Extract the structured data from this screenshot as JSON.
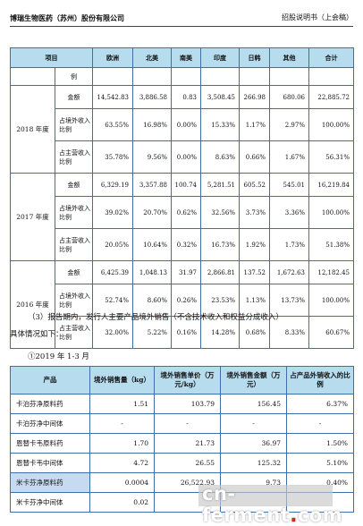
{
  "header": {
    "company": "博瑞生物医药（苏州）股份有限公司",
    "doc": "招股说明书（上会稿）"
  },
  "table1": {
    "headers": [
      "项目",
      "",
      "欧洲",
      "北美",
      "南美",
      "印度",
      "日韩",
      "其他",
      "合计"
    ],
    "carry_row": "例",
    "years": [
      {
        "label": "2018 年度",
        "rows": [
          {
            "metric": "金额",
            "values": [
              "14,542.83",
              "3,886.58",
              "0.83",
              "3,508.45",
              "266.98",
              "680.06",
              "22,885.72"
            ]
          },
          {
            "metric": "占境外收入比例",
            "values": [
              "63.55%",
              "16.98%",
              "0.00%",
              "15.33%",
              "1.17%",
              "2.97%",
              "100.00%"
            ]
          },
          {
            "metric": "占主营收入比例",
            "values": [
              "35.78%",
              "9.56%",
              "0.00%",
              "8.63%",
              "0.66%",
              "1.67%",
              "56.31%"
            ]
          }
        ]
      },
      {
        "label": "2017 年度",
        "rows": [
          {
            "metric": "金额",
            "values": [
              "6,329.19",
              "3,357.88",
              "100.74",
              "5,281.51",
              "605.52",
              "545.01",
              "16,219.84"
            ]
          },
          {
            "metric": "占境外收入比例",
            "values": [
              "39.02%",
              "20.70%",
              "0.62%",
              "32.56%",
              "3.73%",
              "3.36%",
              "100.00%"
            ]
          },
          {
            "metric": "占主营收入比例",
            "values": [
              "20.05%",
              "10.64%",
              "0.32%",
              "16.73%",
              "1.92%",
              "1.73%",
              "51.38%"
            ]
          }
        ]
      },
      {
        "label": "2016 年度",
        "rows": [
          {
            "metric": "金额",
            "values": [
              "6,425.39",
              "1,048.13",
              "31.97",
              "2,866.81",
              "137.52",
              "1,672.63",
              "12,182.45"
            ]
          },
          {
            "metric": "占境外收入比例",
            "values": [
              "52.74%",
              "8.60%",
              "0.26%",
              "23.53%",
              "1.13%",
              "13.73%",
              "100.00%"
            ]
          },
          {
            "metric": "占主营收入比例",
            "values": [
              "32.00%",
              "5.22%",
              "0.16%",
              "14.28%",
              "0.68%",
              "8.33%",
              "60.67%"
            ]
          }
        ]
      }
    ]
  },
  "para1": "（3）报告期内，发行人主要产品境外销售（不含技术收入和权益分成收入）",
  "para2": "具体情况如下：",
  "para3": "①2019 年 1-3 月",
  "table2": {
    "headers": [
      "产品",
      "境外销售量（kg）",
      "境外销售单价（万元/kg）",
      "境外销售金额（万元）",
      "占产品外销收入的比例"
    ],
    "rows": [
      {
        "product": "卡泊芬净原料药",
        "values": [
          "1.51",
          "103.79",
          "156.45",
          "6.37%"
        ],
        "highlight": false
      },
      {
        "product": "卡泊芬净中间体",
        "values": [
          "-",
          "-",
          "-",
          "-"
        ],
        "highlight": false
      },
      {
        "product": "恩替卡韦原料药",
        "values": [
          "1.70",
          "21.73",
          "36.97",
          "1.50%"
        ],
        "highlight": false
      },
      {
        "product": "恩替卡韦中间体",
        "values": [
          "4.72",
          "26.55",
          "125.32",
          "5.10%"
        ],
        "highlight": false
      },
      {
        "product": "米卡芬净原料药",
        "values": [
          "0.0004",
          "26,522.93",
          "9.73",
          "0.40%"
        ],
        "highlight": true
      },
      {
        "product": "米卡芬净中间体",
        "values": [
          "0.02",
          "",
          "",
          ""
        ],
        "highlight": false
      }
    ]
  },
  "watermark": {
    "prefix": "cn-ferment",
    "dot": ".",
    "suffix": "com"
  }
}
